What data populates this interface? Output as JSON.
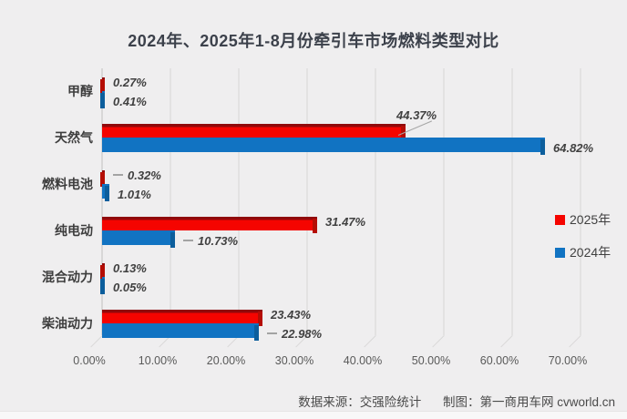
{
  "title": "2024年、2025年1-8月份牵引车市场燃料类型对比",
  "footer": {
    "source": "数据来源：交强险统计",
    "credit": "制图：第一商用车网 cvworld.cn"
  },
  "chart_data": {
    "type": "bar",
    "orientation": "horizontal",
    "title": "2024年、2025年1-8月份牵引车市场燃料类型对比",
    "categories": [
      "甲醇",
      "天然气",
      "燃料电池",
      "纯电动",
      "混合动力",
      "柴油动力"
    ],
    "series": [
      {
        "name": "2025年",
        "color": "#f50400",
        "color_top": "#90090b",
        "color_cap": "#b50d04",
        "values": [
          0.27,
          44.37,
          0.32,
          31.47,
          0.13,
          23.43
        ],
        "label_hints": [
          "plain",
          "above",
          "dash",
          "plain",
          "plain",
          "plain"
        ]
      },
      {
        "name": "2024年",
        "color": "#1173c2",
        "color_top": "#0a4f86",
        "color_cap": "#0c5e9c",
        "values": [
          0.41,
          64.82,
          1.01,
          10.73,
          0.05,
          22.98
        ],
        "label_hints": [
          "plain",
          "plain",
          "plain",
          "dash",
          "plain",
          "dash"
        ]
      }
    ],
    "x_ticks": [
      "0.00%",
      "10.00%",
      "20.00%",
      "30.00%",
      "40.00%",
      "50.00%",
      "60.00%",
      "70.00%"
    ],
    "xlim": [
      0,
      70
    ],
    "value_suffix": "%",
    "grid": "vertical",
    "legend_position": "right",
    "effect": "3d"
  }
}
